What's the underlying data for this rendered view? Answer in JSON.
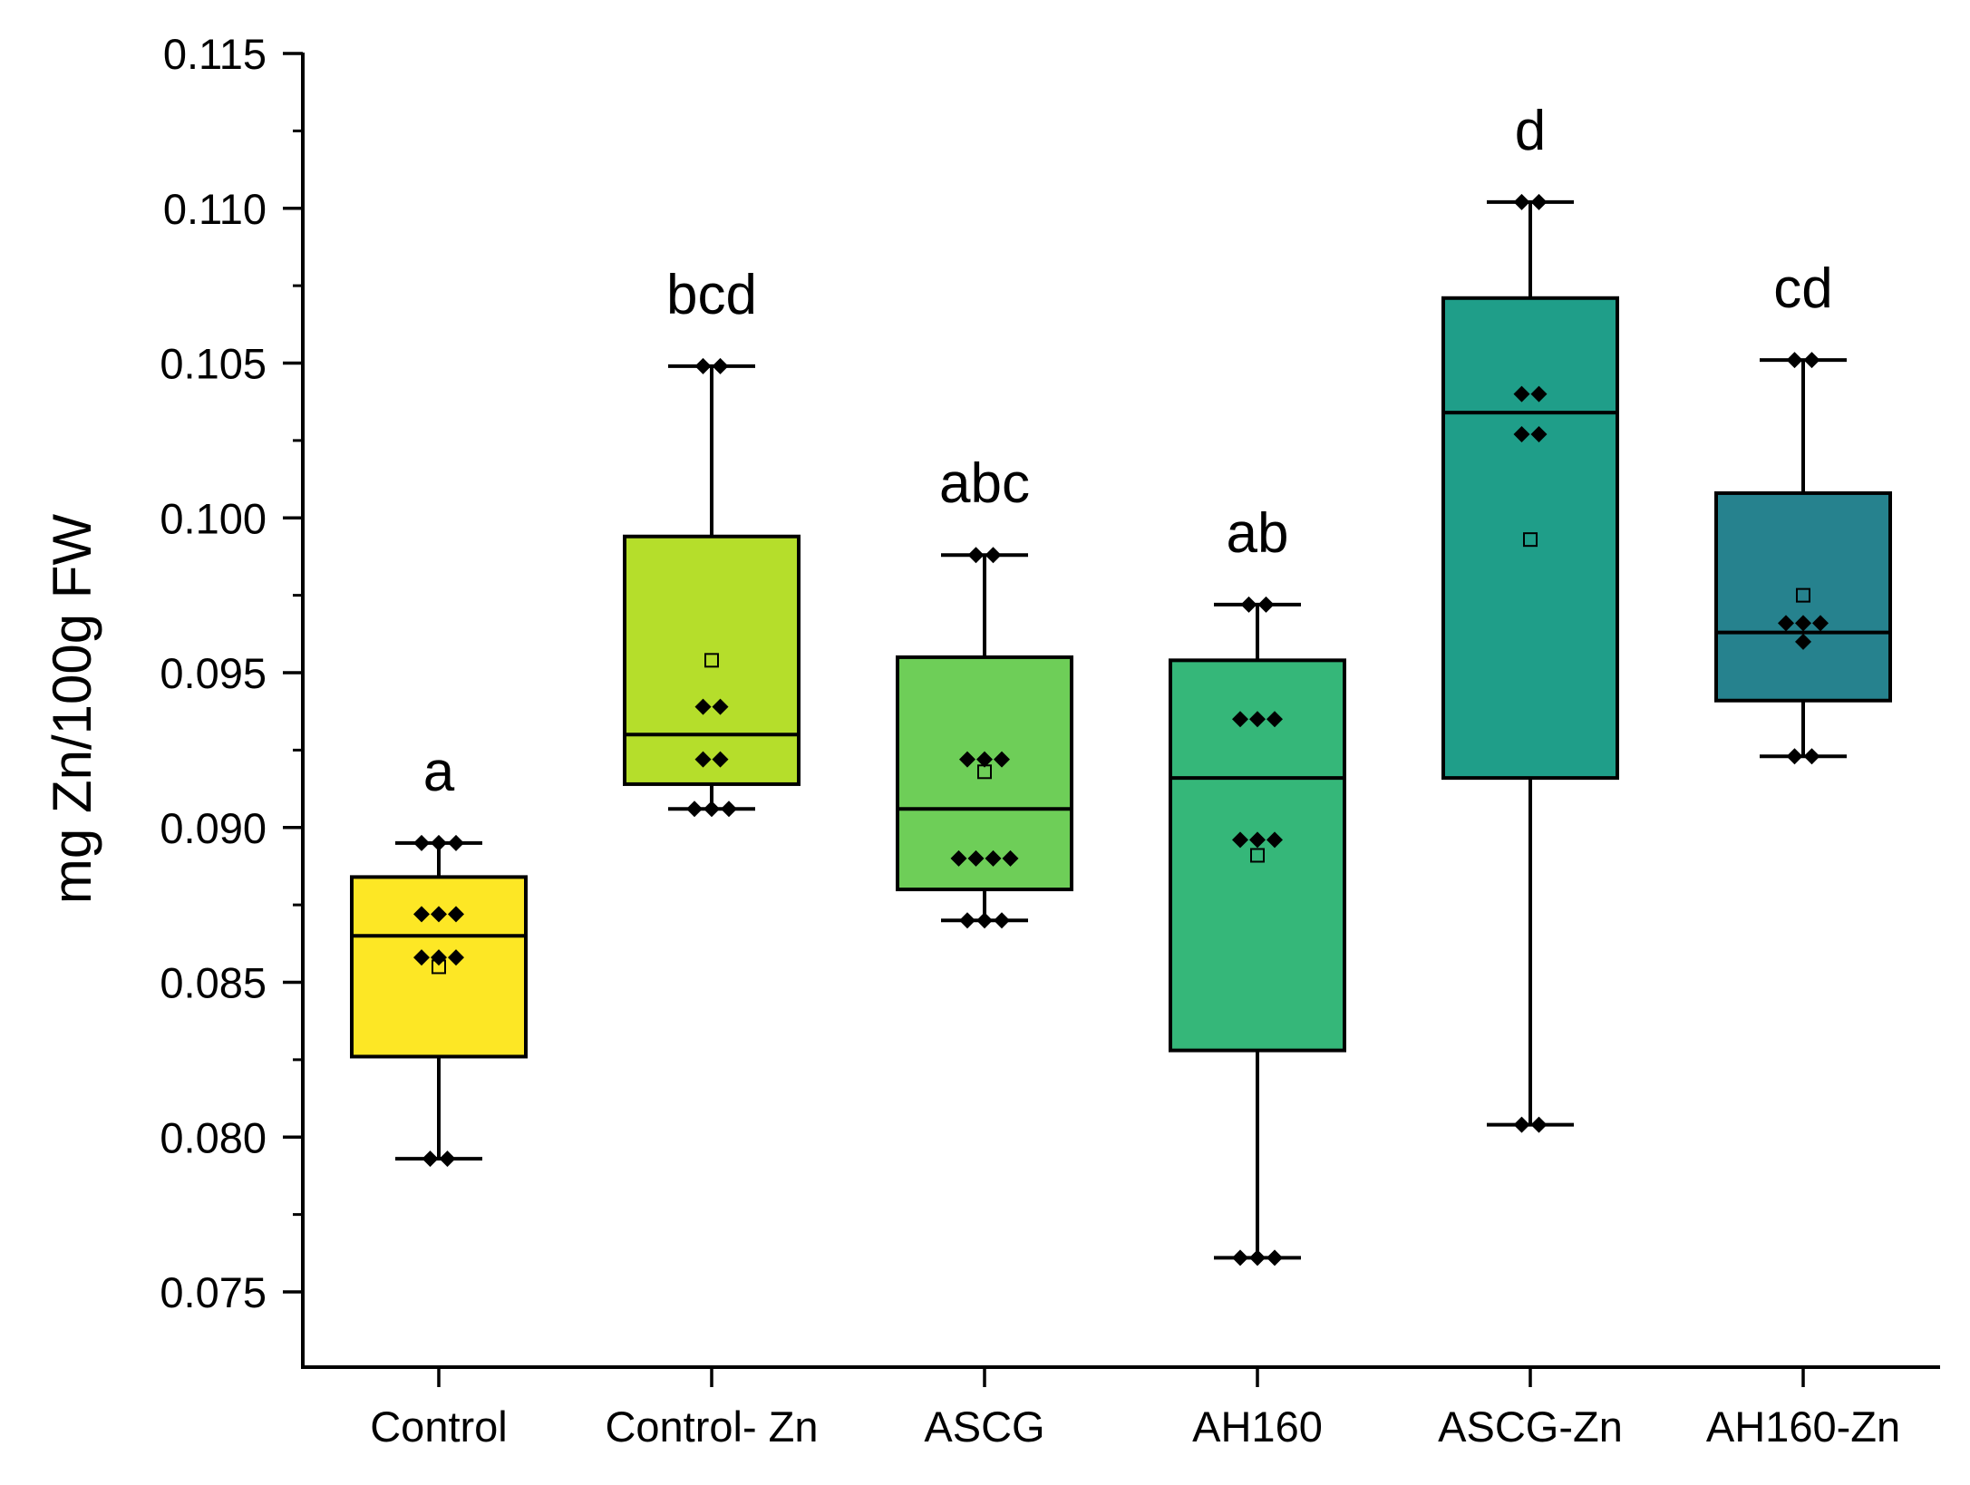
{
  "chart_data": {
    "type": "box",
    "title": "",
    "xlabel": "",
    "ylabel": "mg Zn/100g FW",
    "ylim": [
      0.0725,
      0.115
    ],
    "yticks": [
      0.075,
      0.08,
      0.085,
      0.09,
      0.095,
      0.1,
      0.105,
      0.11,
      0.115
    ],
    "ytick_labels": [
      "0.075",
      "0.080",
      "0.085",
      "0.090",
      "0.095",
      "0.100",
      "0.105",
      "0.110",
      "0.115"
    ],
    "y_minor_step": 0.0025,
    "categories": [
      "Control",
      "Control- Zn",
      "ASCG",
      "AH160",
      "ASCG-Zn",
      "AH160-Zn"
    ],
    "groups": [
      {
        "name": "Control",
        "color": "#fde725",
        "letter": "a",
        "whisker_low": 0.0793,
        "q1": 0.0826,
        "median": 0.0865,
        "q3": 0.0884,
        "whisker_high": 0.0895,
        "mean": 0.0855,
        "points": [
          0.0895,
          0.0895,
          0.0895,
          0.0872,
          0.0872,
          0.0872,
          0.0858,
          0.0858,
          0.0858,
          0.0793,
          0.0793
        ]
      },
      {
        "name": "Control- Zn",
        "color": "#b5de2b",
        "letter": "bcd",
        "whisker_low": 0.0906,
        "q1": 0.0914,
        "median": 0.093,
        "q3": 0.0994,
        "whisker_high": 0.1049,
        "mean": 0.0954,
        "points": [
          0.1049,
          0.1049,
          0.0939,
          0.0939,
          0.0922,
          0.0922,
          0.0906,
          0.0906,
          0.0906
        ]
      },
      {
        "name": "ASCG",
        "color": "#6ece58",
        "letter": "abc",
        "whisker_low": 0.087,
        "q1": 0.088,
        "median": 0.0906,
        "q3": 0.0955,
        "whisker_high": 0.0988,
        "mean": 0.0918,
        "points": [
          0.0988,
          0.0988,
          0.0922,
          0.0922,
          0.0922,
          0.089,
          0.089,
          0.089,
          0.089,
          0.087,
          0.087,
          0.087
        ]
      },
      {
        "name": "AH160",
        "color": "#35b779",
        "letter": "ab",
        "whisker_low": 0.0761,
        "q1": 0.0828,
        "median": 0.0916,
        "q3": 0.0954,
        "whisker_high": 0.0972,
        "mean": 0.0891,
        "points": [
          0.0972,
          0.0972,
          0.0935,
          0.0935,
          0.0935,
          0.0896,
          0.0896,
          0.0896,
          0.0761,
          0.0761,
          0.0761
        ]
      },
      {
        "name": "ASCG-Zn",
        "color": "#1f9e89",
        "letter": "d",
        "whisker_low": 0.0804,
        "q1": 0.0916,
        "median": 0.1034,
        "q3": 0.1071,
        "whisker_high": 0.1102,
        "mean": 0.0993,
        "points": [
          0.1102,
          0.1102,
          0.104,
          0.104,
          0.1027,
          0.1027,
          0.0804,
          0.0804
        ]
      },
      {
        "name": "AH160-Zn",
        "color": "#26828e",
        "letter": "cd",
        "whisker_low": 0.0923,
        "q1": 0.0941,
        "median": 0.0963,
        "q3": 0.1008,
        "whisker_high": 0.1051,
        "mean": 0.0975,
        "points": [
          0.1051,
          0.1051,
          0.0966,
          0.0966,
          0.0966,
          0.096,
          0.0923,
          0.0923
        ]
      }
    ]
  }
}
